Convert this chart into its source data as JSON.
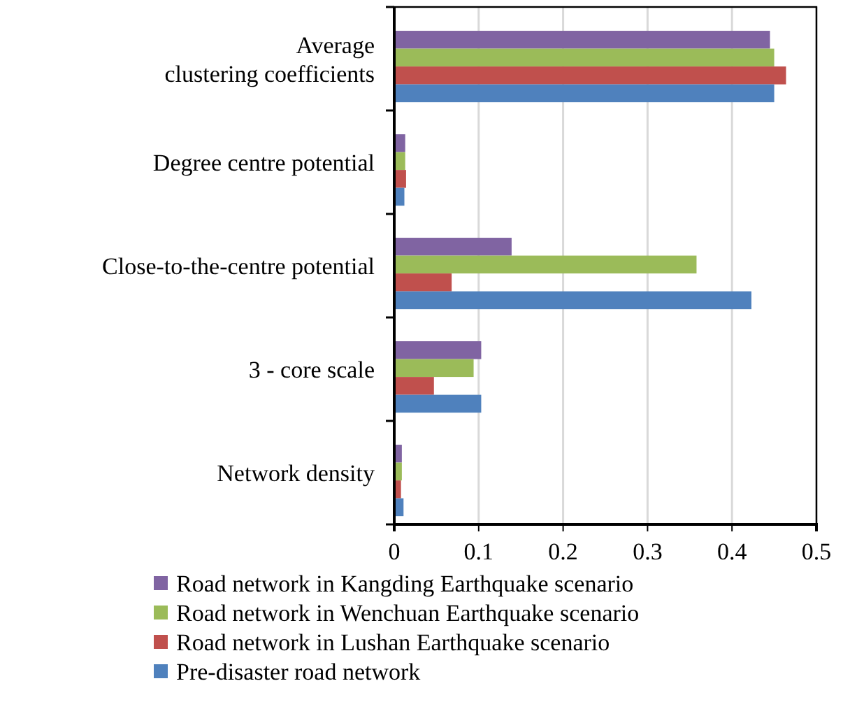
{
  "chart_data": {
    "type": "bar",
    "orientation": "horizontal",
    "categories": [
      "Average\nclustering coefficients",
      "Degree centre potential",
      "Close-to-the-centre potential",
      "3 - core scale",
      "Network density"
    ],
    "series": [
      {
        "name": "Road network in Kangding Earthquake scenario",
        "color": "#8064a2",
        "values": [
          0.445,
          0.013,
          0.139,
          0.103,
          0.009
        ]
      },
      {
        "name": "Road network in Wenchuan Earthquake scenario",
        "color": "#9bbb59",
        "values": [
          0.45,
          0.013,
          0.358,
          0.094,
          0.009
        ]
      },
      {
        "name": "Road network in Lushan Earthquake scenario",
        "color": "#c0504d",
        "values": [
          0.464,
          0.014,
          0.068,
          0.047,
          0.008
        ]
      },
      {
        "name": "Pre-disaster road network",
        "color": "#4f81bd",
        "values": [
          0.45,
          0.012,
          0.423,
          0.103,
          0.011
        ]
      }
    ],
    "xlim": [
      0,
      0.5
    ],
    "xticks": [
      0,
      0.1,
      0.2,
      0.3,
      0.4,
      0.5
    ],
    "grid": "x",
    "legend": "bottom"
  }
}
